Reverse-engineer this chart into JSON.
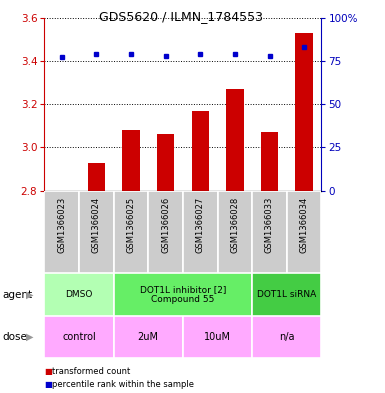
{
  "title": "GDS5620 / ILMN_1784553",
  "samples": [
    "GSM1366023",
    "GSM1366024",
    "GSM1366025",
    "GSM1366026",
    "GSM1366027",
    "GSM1366028",
    "GSM1366033",
    "GSM1366034"
  ],
  "bar_values": [
    2.8,
    2.93,
    3.08,
    3.06,
    3.17,
    3.27,
    3.07,
    3.53
  ],
  "dot_values": [
    77,
    79,
    79,
    78,
    79,
    79,
    78,
    83
  ],
  "ylim_left": [
    2.8,
    3.6
  ],
  "ylim_right": [
    0,
    100
  ],
  "yticks_left": [
    2.8,
    3.0,
    3.2,
    3.4,
    3.6
  ],
  "yticks_right": [
    0,
    25,
    50,
    75,
    100
  ],
  "bar_color": "#cc0000",
  "dot_color": "#0000cc",
  "bar_base": 2.8,
  "agent_groups": [
    {
      "label": "DMSO",
      "cols": [
        0,
        1
      ],
      "color": "#b3ffb3"
    },
    {
      "label": "DOT1L inhibitor [2]\nCompound 55",
      "cols": [
        2,
        3,
        4,
        5
      ],
      "color": "#66ee66"
    },
    {
      "label": "DOT1L siRNA",
      "cols": [
        6,
        7
      ],
      "color": "#44cc44"
    }
  ],
  "dose_groups": [
    {
      "label": "control",
      "cols": [
        0,
        1
      ],
      "color": "#ffaaff"
    },
    {
      "label": "2uM",
      "cols": [
        2,
        3
      ],
      "color": "#ffaaff"
    },
    {
      "label": "10uM",
      "cols": [
        4,
        5
      ],
      "color": "#ffaaff"
    },
    {
      "label": "n/a",
      "cols": [
        6,
        7
      ],
      "color": "#ffaaff"
    }
  ],
  "xlabel_agent": "agent",
  "xlabel_dose": "dose",
  "bg_color_samples": "#cccccc",
  "right_axis_color": "#0000bb",
  "left_axis_color": "#cc0000",
  "title_fontsize": 9,
  "tick_fontsize": 7.5,
  "bar_width": 0.5
}
